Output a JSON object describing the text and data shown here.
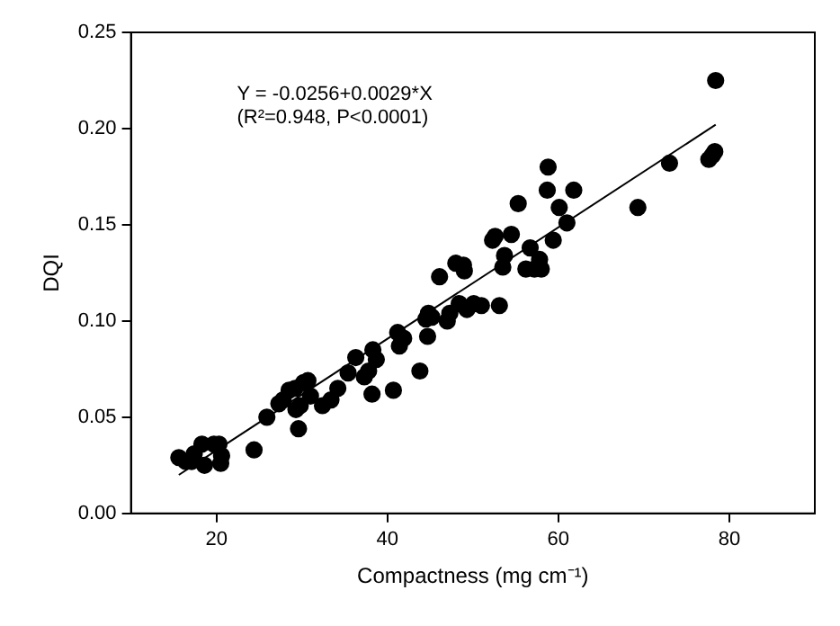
{
  "chart_data": {
    "type": "scatter",
    "xlabel": "Compactness (mg cm⁻¹)",
    "ylabel": "DQI",
    "xlim": [
      10,
      90
    ],
    "xticks": [
      20,
      40,
      60,
      80
    ],
    "ylim": [
      0,
      0.25
    ],
    "yticks": [
      {
        "value": 0,
        "label": "0.00"
      },
      {
        "value": 0.05,
        "label": "0.05"
      },
      {
        "value": 0.1,
        "label": "0.10"
      },
      {
        "value": 0.15,
        "label": "0.15"
      },
      {
        "value": 0.2,
        "label": "0.20"
      },
      {
        "value": 0.25,
        "label": "0.25"
      }
    ],
    "grid": false,
    "legend": false,
    "marker": "circle",
    "annotations": [
      "Y = -0.0256+0.0029*X",
      "(R²=0.948, P<0.0001)"
    ],
    "series": [
      {
        "color": "#000000",
        "x": [
          15.6,
          16.4,
          17.1,
          17.4,
          18.3,
          18.6,
          19.7,
          20.3,
          20.5,
          20.6,
          24.4,
          25.9,
          27.3,
          27.8,
          28.5,
          29.2,
          29.3,
          29.6,
          29.8,
          30.2,
          30.7,
          31.0,
          32.4,
          33.4,
          34.2,
          35.4,
          36.3,
          37.3,
          37.8,
          38.2,
          38.3,
          38.7,
          40.7,
          41.2,
          41.4,
          41.9,
          43.8,
          44.5,
          44.8,
          44.7,
          45.2,
          46.1,
          47.0,
          47.3,
          48.0,
          48.4,
          48.9,
          49.0,
          49.3,
          50.1,
          51.0,
          52.3,
          52.6,
          53.1,
          53.5,
          53.7,
          54.5,
          55.3,
          56.2,
          56.7,
          57.2,
          57.8,
          58.0,
          58.7,
          58.8,
          59.4,
          60.1,
          61.0,
          61.8,
          69.3,
          73.0,
          77.6,
          78.0,
          78.3,
          78.4
        ],
        "values": [
          0.029,
          0.027,
          0.027,
          0.031,
          0.036,
          0.025,
          0.036,
          0.036,
          0.026,
          0.03,
          0.033,
          0.05,
          0.057,
          0.059,
          0.064,
          0.065,
          0.054,
          0.044,
          0.056,
          0.068,
          0.069,
          0.061,
          0.056,
          0.059,
          0.065,
          0.073,
          0.081,
          0.071,
          0.074,
          0.062,
          0.085,
          0.08,
          0.064,
          0.094,
          0.087,
          0.091,
          0.074,
          0.101,
          0.104,
          0.092,
          0.102,
          0.123,
          0.1,
          0.104,
          0.13,
          0.109,
          0.129,
          0.126,
          0.106,
          0.109,
          0.108,
          0.142,
          0.144,
          0.108,
          0.128,
          0.134,
          0.145,
          0.161,
          0.127,
          0.138,
          0.127,
          0.132,
          0.127,
          0.168,
          0.18,
          0.142,
          0.159,
          0.151,
          0.168,
          0.159,
          0.182,
          0.184,
          0.186,
          0.188,
          0.225
        ]
      },
      {
        "type": "line",
        "color": "#000000",
        "marker": "none",
        "line_style": "solid",
        "x": [
          15.6,
          78.4
        ],
        "values": [
          0.02,
          0.202
        ]
      }
    ]
  }
}
